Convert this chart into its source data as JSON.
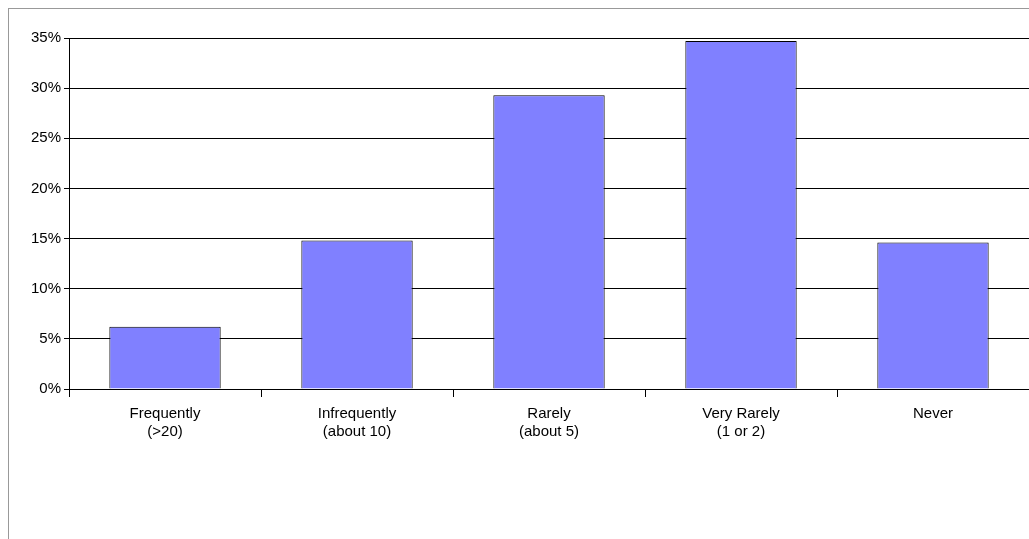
{
  "chart_data": {
    "type": "bar",
    "categories": [
      "Frequently\n(>20)",
      "Infrequently\n(about 10)",
      "Rarely\n(about 5)",
      "Very Rarely\n(1 or 2)",
      "Never"
    ],
    "values": [
      6.2,
      14.8,
      29.3,
      34.7,
      14.6
    ],
    "color": "#8080ff",
    "ylim": [
      0,
      35
    ],
    "yticks": [
      {
        "value": 0,
        "label": "0%"
      },
      {
        "value": 5,
        "label": "5%"
      },
      {
        "value": 10,
        "label": "10%"
      },
      {
        "value": 15,
        "label": "15%"
      },
      {
        "value": 20,
        "label": "20%"
      },
      {
        "value": 25,
        "label": "25%"
      },
      {
        "value": 30,
        "label": "30%"
      },
      {
        "value": 35,
        "label": "35%"
      }
    ],
    "grid": "y",
    "legend": false
  }
}
